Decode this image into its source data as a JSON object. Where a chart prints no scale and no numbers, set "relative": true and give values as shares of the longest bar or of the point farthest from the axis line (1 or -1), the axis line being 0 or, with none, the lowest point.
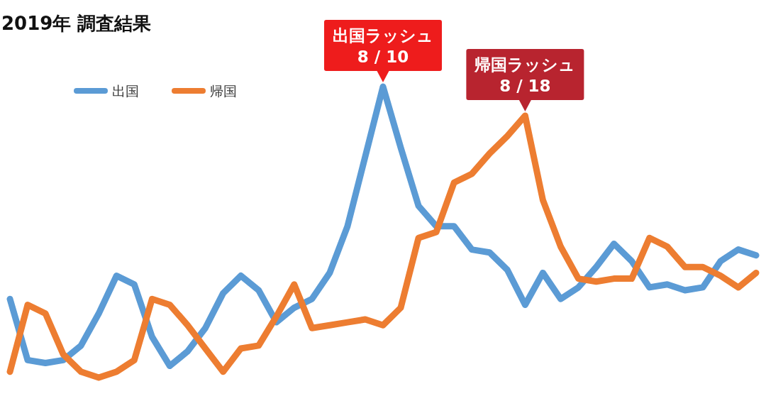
{
  "chart_data": {
    "type": "line",
    "title": "2019年 調査結果",
    "relative": true,
    "legend": "top left",
    "categories": [
      null,
      null,
      null,
      null,
      null,
      null,
      null,
      null,
      null,
      null,
      null,
      null,
      null,
      null,
      null,
      null,
      null,
      null,
      null,
      null,
      null,
      null,
      null,
      null,
      null,
      null,
      null,
      null,
      null,
      null,
      null,
      null,
      null,
      null,
      null,
      null,
      null,
      null,
      null,
      null,
      null,
      null,
      null
    ],
    "series": [
      {
        "name": "出国",
        "color": "#5b9bd5",
        "values": [
          0.27,
          0.06,
          0.05,
          0.06,
          0.11,
          0.22,
          0.35,
          0.32,
          0.14,
          0.04,
          0.09,
          0.17,
          0.29,
          0.35,
          0.3,
          0.19,
          0.24,
          0.27,
          0.36,
          0.52,
          0.76,
          1,
          0.79,
          0.59,
          0.52,
          0.52,
          0.44,
          0.43,
          0.37,
          0.25,
          0.36,
          0.27,
          0.31,
          0.38,
          0.46,
          0.4,
          0.31,
          0.32,
          0.3,
          0.31,
          0.4,
          0.44,
          0.42
        ]
      },
      {
        "name": "帰国",
        "color": "#ed7d31",
        "values": [
          0.02,
          0.25,
          0.22,
          0.08,
          0.02,
          0,
          0.02,
          0.06,
          0.27,
          0.25,
          0.18,
          0.1,
          0.02,
          0.1,
          0.11,
          0.21,
          0.32,
          0.17,
          0.18,
          0.19,
          0.2,
          0.18,
          0.24,
          0.48,
          0.5,
          0.67,
          0.7,
          0.77,
          0.83,
          0.9,
          0.61,
          0.45,
          0.34,
          0.33,
          0.34,
          0.34,
          0.48,
          0.45,
          0.38,
          0.38,
          0.35,
          0.31,
          0.36
        ]
      }
    ],
    "annotations": [
      {
        "text": "出国ラッシュ\n8 / 10",
        "y": 1
      },
      {
        "text": "帰国ラッシュ\n8 / 18",
        "y": 0.9
      }
    ]
  }
}
